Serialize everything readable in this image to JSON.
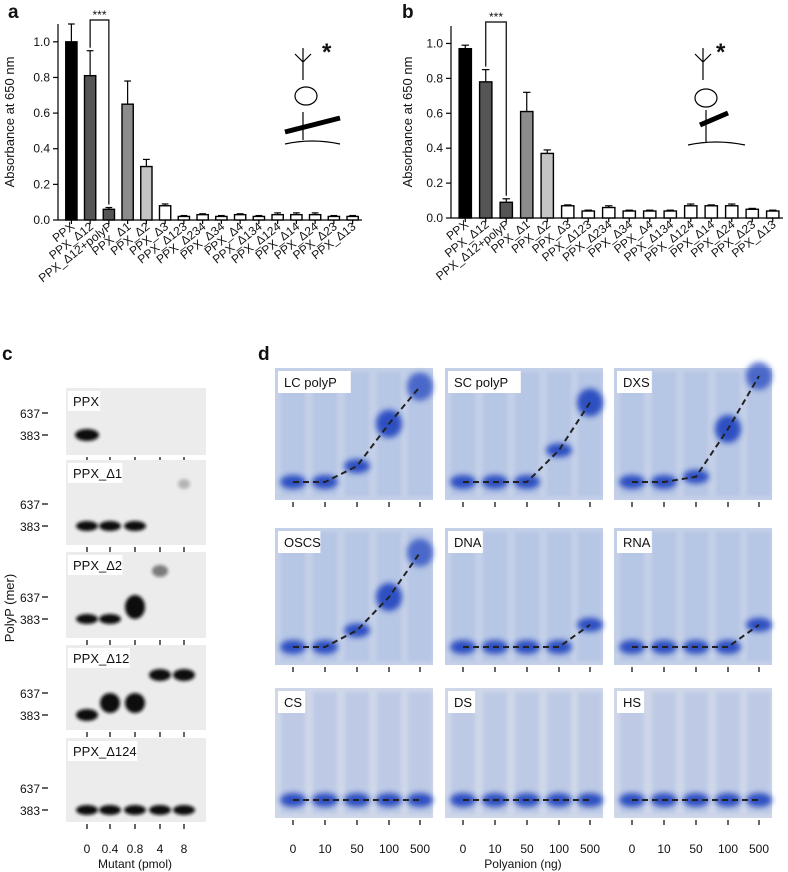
{
  "chart_data": [
    {
      "type": "bar",
      "panel_label": "a",
      "y_label": "Absorbance at 650 nm",
      "annotation": "***",
      "icon_mark": "*",
      "categories": [
        "PPX",
        "PPX_Δ12",
        "PPX_Δ12+polyP",
        "PPX_Δ1",
        "PPX_Δ2",
        "PPX_Δ3",
        "PPX_Δ123",
        "PPX_Δ234",
        "PPX_Δ34",
        "PPX_Δ4",
        "PPX_Δ134",
        "PPX_Δ124",
        "PPX_Δ14",
        "PPX_Δ24",
        "PPX_Δ23",
        "PPX_Δ13"
      ],
      "values": [
        1.0,
        0.81,
        0.06,
        0.65,
        0.3,
        0.08,
        0.02,
        0.03,
        0.02,
        0.03,
        0.02,
        0.03,
        0.03,
        0.03,
        0.02,
        0.02
      ],
      "errors": [
        0.1,
        0.14,
        0.01,
        0.13,
        0.04,
        0.01,
        0.005,
        0.005,
        0.005,
        0.005,
        0.005,
        0.01,
        0.01,
        0.01,
        0.005,
        0.005
      ],
      "colors": [
        "#000000",
        "#555555",
        "#555555",
        "#8c8c8c",
        "#c4c4c4",
        "#ffffff",
        "#ffffff",
        "#ffffff",
        "#ffffff",
        "#ffffff",
        "#ffffff",
        "#ffffff",
        "#ffffff",
        "#ffffff",
        "#ffffff",
        "#ffffff"
      ],
      "ylim": [
        0,
        1.1
      ],
      "yticks": [
        {
          "value": 0,
          "label": "0.0"
        },
        0.2,
        0.4,
        0.6,
        0.8,
        {
          "value": 1,
          "label": "1.0"
        }
      ]
    },
    {
      "type": "bar",
      "panel_label": "b",
      "y_label": "Absorbance at 650 nm",
      "annotation": "***",
      "icon_mark": "*",
      "categories": [
        "PPX",
        "PPX_Δ12",
        "PPX_Δ12+polyP",
        "PPX_Δ1",
        "PPX_Δ2",
        "PPX_Δ3",
        "PPX_Δ123",
        "PPX_Δ234",
        "PPX_Δ34",
        "PPX_Δ4",
        "PPX_Δ134",
        "PPX_Δ124",
        "PPX_Δ14",
        "PPX_Δ24",
        "PPX_Δ23",
        "PPX_Δ13"
      ],
      "values": [
        0.97,
        0.78,
        0.09,
        0.61,
        0.37,
        0.07,
        0.04,
        0.06,
        0.04,
        0.04,
        0.04,
        0.07,
        0.07,
        0.07,
        0.05,
        0.04
      ],
      "errors": [
        0.02,
        0.07,
        0.02,
        0.11,
        0.02,
        0.005,
        0.005,
        0.01,
        0.005,
        0.005,
        0.005,
        0.01,
        0.005,
        0.01,
        0.005,
        0.005
      ],
      "colors": [
        "#000000",
        "#555555",
        "#555555",
        "#8c8c8c",
        "#c4c4c4",
        "#ffffff",
        "#ffffff",
        "#ffffff",
        "#ffffff",
        "#ffffff",
        "#ffffff",
        "#ffffff",
        "#ffffff",
        "#ffffff",
        "#ffffff",
        "#ffffff"
      ],
      "ylim": [
        0,
        1.1
      ],
      "yticks": [
        {
          "value": 0,
          "label": "0.0"
        },
        0.2,
        0.4,
        0.6,
        0.8,
        {
          "value": 1,
          "label": "1.0"
        }
      ]
    }
  ],
  "panel_c": {
    "label": "c",
    "y_label": "PolyP (mer)",
    "x_label": "Mutant (pmol)",
    "x_ticks": [
      "0",
      "0.4",
      "0.8",
      "4",
      "8"
    ],
    "markers": [
      "637",
      "383"
    ],
    "gels": [
      "PPX",
      "PPX_Δ1",
      "PPX_Δ2",
      "PPX_Δ12",
      "PPX_Δ124"
    ]
  },
  "panel_d": {
    "label": "d",
    "x_label": "Polyanion (ng)",
    "x_ticks": [
      "0",
      "10",
      "50",
      "100",
      "500"
    ],
    "gels": [
      "LC polyP",
      "SC polyP",
      "DXS",
      "OSCS",
      "DNA",
      "RNA",
      "CS",
      "DS",
      "HS"
    ]
  }
}
